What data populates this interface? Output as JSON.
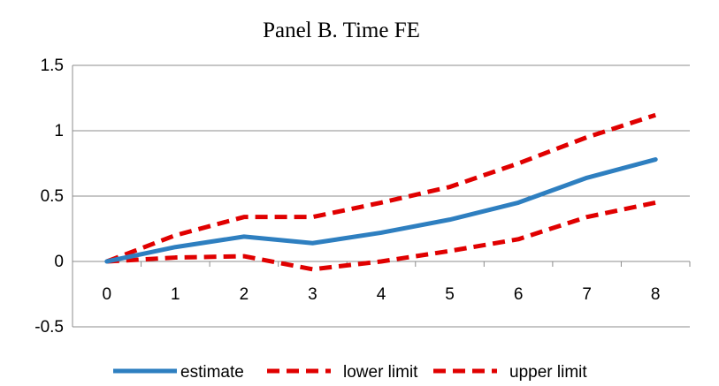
{
  "chart_data": {
    "type": "line",
    "title": "Panel B. Time FE",
    "xlabel": "",
    "ylabel": "",
    "categories": [
      "0",
      "1",
      "2",
      "3",
      "4",
      "5",
      "6",
      "7",
      "8"
    ],
    "ylim": [
      -0.5,
      1.5
    ],
    "yticks": [
      "1.5",
      "1",
      "0.5",
      "0",
      "-0.5"
    ],
    "grid": true,
    "legend_position": "bottom",
    "series": [
      {
        "name": "estimate",
        "color": "#2e7fc0",
        "dash": "solid",
        "values": [
          0.0,
          0.11,
          0.19,
          0.14,
          0.22,
          0.32,
          0.45,
          0.64,
          0.78
        ]
      },
      {
        "name": "lower limit",
        "color": "#e00000",
        "dash": "dashed",
        "values": [
          0.0,
          0.03,
          0.04,
          -0.06,
          0.0,
          0.08,
          0.17,
          0.34,
          0.45
        ]
      },
      {
        "name": "upper limit",
        "color": "#e00000",
        "dash": "dashed",
        "values": [
          0.0,
          0.2,
          0.34,
          0.34,
          0.45,
          0.57,
          0.75,
          0.95,
          1.12
        ]
      }
    ]
  }
}
